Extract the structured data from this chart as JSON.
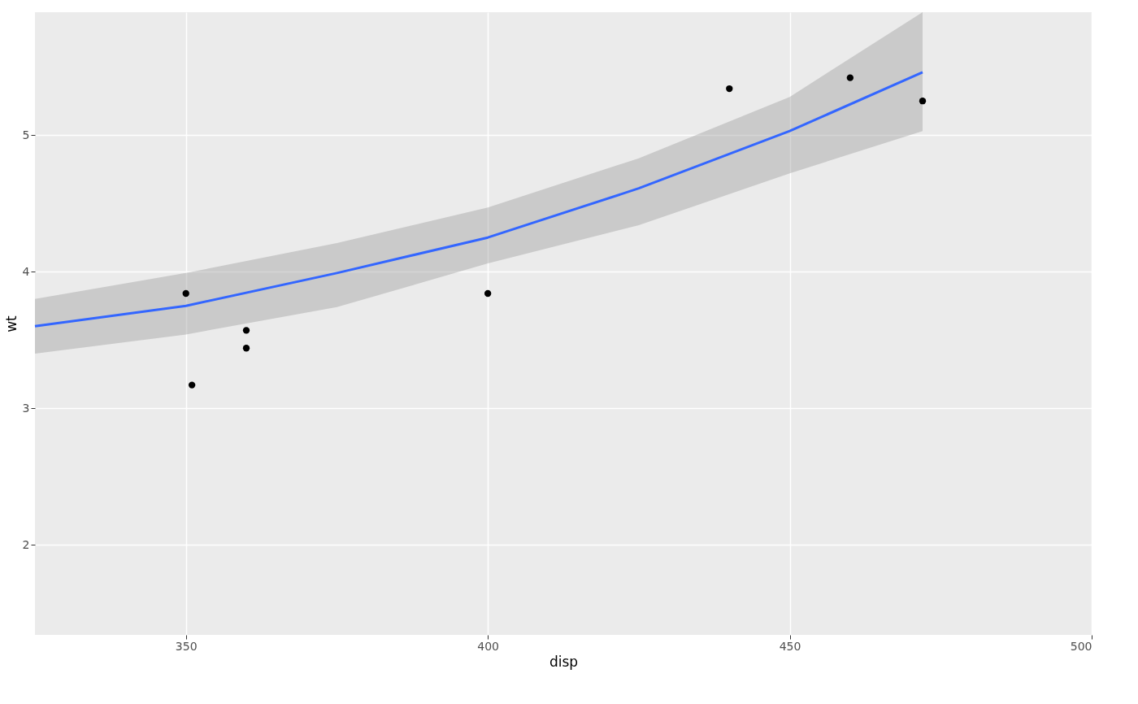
{
  "chart_data": {
    "type": "scatter",
    "xlabel": "disp",
    "ylabel": "wt",
    "xlim": [
      325,
      500
    ],
    "ylim": [
      1.34,
      5.9
    ],
    "xticks": [
      350,
      400,
      450,
      500
    ],
    "yticks": [
      2,
      3,
      4,
      5
    ],
    "grid": true,
    "series": [
      {
        "marker": "circle",
        "color": "#000000",
        "x": [
          350,
          351,
          360,
          360,
          400,
          440,
          460,
          472
        ],
        "values": [
          3.84,
          3.17,
          3.44,
          3.57,
          3.84,
          5.34,
          5.42,
          5.25
        ]
      },
      {
        "type": "line",
        "color": "#3366ff",
        "x": [
          325,
          350,
          375,
          400,
          425,
          450,
          472
        ],
        "values": [
          3.6,
          3.75,
          3.99,
          4.25,
          4.61,
          5.03,
          5.46
        ],
        "lower": [
          3.4,
          3.54,
          3.74,
          4.06,
          4.34,
          4.72,
          5.03
        ],
        "upper": [
          3.8,
          3.99,
          4.21,
          4.47,
          4.83,
          5.28,
          5.9
        ]
      }
    ]
  }
}
